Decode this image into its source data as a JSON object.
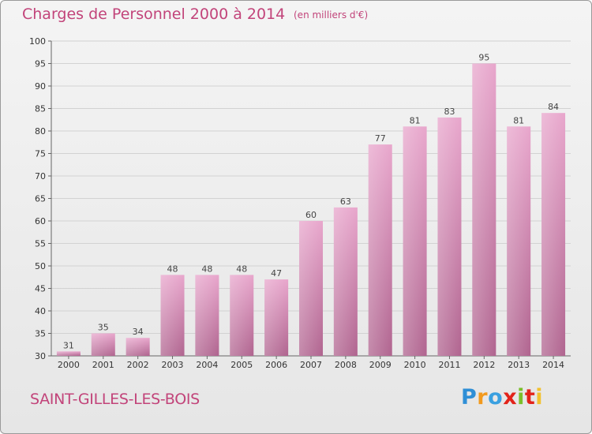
{
  "header": {
    "title": "Charges de Personnel 2000 à 2014",
    "unit": "(en milliers d'€)"
  },
  "footer": {
    "commune": "SAINT-GILLES-LES-BOIS",
    "logo": "Proxiti"
  },
  "colors": {
    "title": "#c2447a",
    "bar_top": "#e8a6cc",
    "bar_bottom": "#b0648f",
    "grid": "#d2d2d2"
  },
  "chart_data": {
    "type": "bar",
    "title": "Charges de Personnel 2000 à 2014",
    "subtitle": "(en milliers d'€)",
    "xlabel": "",
    "ylabel": "",
    "categories": [
      "2000",
      "2001",
      "2002",
      "2003",
      "2004",
      "2005",
      "2006",
      "2007",
      "2008",
      "2009",
      "2010",
      "2011",
      "2012",
      "2013",
      "2014"
    ],
    "values": [
      31,
      35,
      34,
      48,
      48,
      48,
      47,
      60,
      63,
      77,
      81,
      83,
      95,
      81,
      84
    ],
    "ylim": [
      30,
      100
    ],
    "yticks": [
      30,
      35,
      40,
      45,
      50,
      55,
      60,
      65,
      70,
      75,
      80,
      85,
      90,
      95,
      100
    ],
    "grid": true,
    "data_labels": true
  }
}
